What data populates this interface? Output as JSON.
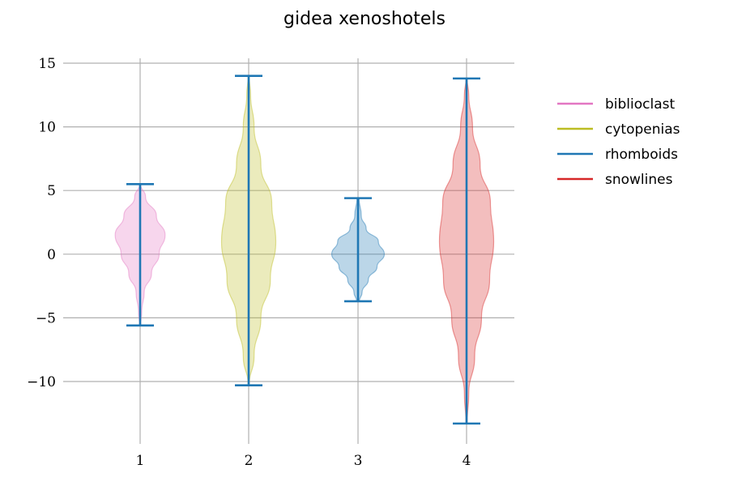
{
  "chart_data": {
    "type": "violin",
    "title": "gidea xenoshotels",
    "xlabel": "",
    "ylabel": "",
    "categories": [
      "1",
      "2",
      "3",
      "4"
    ],
    "ylim": [
      -15,
      15.5
    ],
    "yticks": [
      15,
      10,
      5,
      0,
      -5,
      -10
    ],
    "ytick_labels": [
      "15",
      "10",
      "5",
      "0",
      "−5",
      "−10"
    ],
    "grid": true,
    "legend_position": "right",
    "series": [
      {
        "name": "biblioclast",
        "color": "#e377c2",
        "min": -5.6,
        "max": 5.5,
        "density": [
          [
            -5.6,
            0.02
          ],
          [
            -4.5,
            0.06
          ],
          [
            -3.0,
            0.15
          ],
          [
            -1.5,
            0.42
          ],
          [
            0.0,
            0.7
          ],
          [
            1.5,
            0.92
          ],
          [
            3.0,
            0.6
          ],
          [
            4.5,
            0.2
          ],
          [
            5.5,
            0.02
          ]
        ]
      },
      {
        "name": "cytopenias",
        "color": "#bcbd22",
        "min": -10.3,
        "max": 14.0,
        "density": [
          [
            -10.3,
            0.02
          ],
          [
            -8.0,
            0.2
          ],
          [
            -5.0,
            0.45
          ],
          [
            -2.0,
            0.8
          ],
          [
            1.0,
            1.0
          ],
          [
            4.0,
            0.85
          ],
          [
            7.0,
            0.45
          ],
          [
            10.0,
            0.2
          ],
          [
            12.5,
            0.07
          ],
          [
            14.0,
            0.02
          ]
        ]
      },
      {
        "name": "rhomboids",
        "color": "#1f77b4",
        "min": -3.7,
        "max": 4.4,
        "density": [
          [
            -3.7,
            0.05
          ],
          [
            -3.0,
            0.15
          ],
          [
            -2.0,
            0.38
          ],
          [
            -1.0,
            0.7
          ],
          [
            0.0,
            0.97
          ],
          [
            1.0,
            0.75
          ],
          [
            2.0,
            0.3
          ],
          [
            3.0,
            0.12
          ],
          [
            4.4,
            0.04
          ]
        ]
      },
      {
        "name": "snowlines",
        "color": "#d62728",
        "min": -13.3,
        "max": 13.8,
        "density": [
          [
            -13.3,
            0.02
          ],
          [
            -11.0,
            0.08
          ],
          [
            -8.0,
            0.3
          ],
          [
            -5.0,
            0.55
          ],
          [
            -2.0,
            0.85
          ],
          [
            1.0,
            1.0
          ],
          [
            4.0,
            0.88
          ],
          [
            7.0,
            0.5
          ],
          [
            10.0,
            0.22
          ],
          [
            12.5,
            0.08
          ],
          [
            13.8,
            0.02
          ]
        ]
      }
    ],
    "whisker_color": "#1f77b4"
  }
}
